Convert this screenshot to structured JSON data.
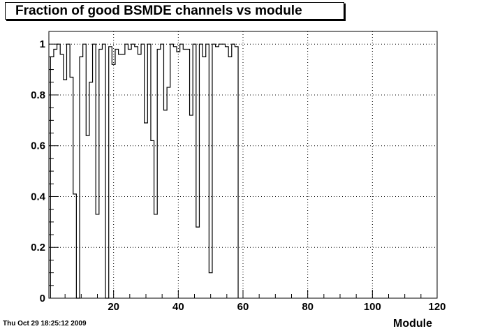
{
  "title": "Fraction of good BSMDE channels vs module",
  "timestamp": "Thu Oct 29 18:25:12 2009",
  "chart_data": {
    "type": "histogram-step",
    "title": "Fraction of good BSMDE channels vs module",
    "xlabel": "Module",
    "ylabel": "",
    "xlim": [
      0,
      120
    ],
    "ylim": [
      0,
      1.05
    ],
    "grid": true,
    "xticks": [
      20,
      40,
      60,
      80,
      100,
      120
    ],
    "yticks": [
      0,
      0.2,
      0.4,
      0.6,
      0.8,
      1
    ],
    "x": [
      1,
      2,
      3,
      4,
      5,
      6,
      7,
      8,
      9,
      10,
      11,
      12,
      13,
      14,
      15,
      16,
      17,
      18,
      19,
      20,
      21,
      22,
      23,
      24,
      25,
      26,
      27,
      28,
      29,
      30,
      31,
      32,
      33,
      34,
      35,
      36,
      37,
      38,
      39,
      40,
      41,
      42,
      43,
      44,
      45,
      46,
      47,
      48,
      49,
      50,
      51,
      52,
      53,
      54,
      55,
      56,
      57,
      58
    ],
    "values": [
      0.95,
      0.98,
      1,
      0.96,
      0.86,
      1,
      0.87,
      0.41,
      0,
      0.95,
      1,
      0.64,
      0.85,
      1,
      0.33,
      0.98,
      1,
      0,
      0.99,
      0.92,
      0.98,
      0.96,
      0.96,
      1,
      0.98,
      1,
      0.99,
      0.96,
      1,
      0.69,
      1,
      0.62,
      0.33,
      0.98,
      1,
      0.74,
      0.83,
      1,
      0.99,
      0.97,
      1,
      0.98,
      0.98,
      0.72,
      1,
      0.28,
      1,
      0.95,
      1,
      0.1,
      1,
      0.99,
      1,
      1,
      0.99,
      0.95,
      1,
      0.99
    ],
    "line_color": "#000000"
  }
}
